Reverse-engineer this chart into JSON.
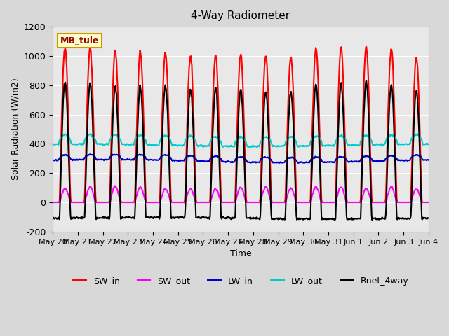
{
  "title": "4-Way Radiometer",
  "xlabel": "Time",
  "ylabel": "Solar Radiation (W/m2)",
  "ylim": [
    -200,
    1200
  ],
  "yticks": [
    -200,
    0,
    200,
    400,
    600,
    800,
    1000,
    1200
  ],
  "num_days": 15,
  "annotation": "MB_tule",
  "annotation_box_color": "#ffffcc",
  "annotation_box_edge": "#cc9900",
  "annotation_text_color": "#990000",
  "series": {
    "SW_in": {
      "color": "#ff0000",
      "lw": 1.5
    },
    "SW_out": {
      "color": "#ff00ff",
      "lw": 1.5
    },
    "LW_in": {
      "color": "#0000cc",
      "lw": 1.5
    },
    "LW_out": {
      "color": "#00cccc",
      "lw": 1.5
    },
    "Rnet_4way": {
      "color": "#000000",
      "lw": 1.5
    }
  },
  "legend_items": [
    {
      "label": "SW_in",
      "color": "#ff0000"
    },
    {
      "label": "SW_out",
      "color": "#ff00ff"
    },
    {
      "label": "LW_in",
      "color": "#0000cc"
    },
    {
      "label": "LW_out",
      "color": "#00cccc"
    },
    {
      "label": "Rnet_4way",
      "color": "#000000"
    }
  ],
  "x_tick_labels": [
    "May 20",
    "May 21",
    "May 22",
    "May 23",
    "May 24",
    "May 25",
    "May 26",
    "May 27",
    "May 28",
    "May 29",
    "May 30",
    "May 31",
    "Jun 1",
    "Jun 2",
    "Jun 3",
    "Jun 4"
  ],
  "grid_color": "#ffffff",
  "grid_alpha": 1.0,
  "fig_facecolor": "#d8d8d8",
  "ax_facecolor": "#e8e8e8"
}
